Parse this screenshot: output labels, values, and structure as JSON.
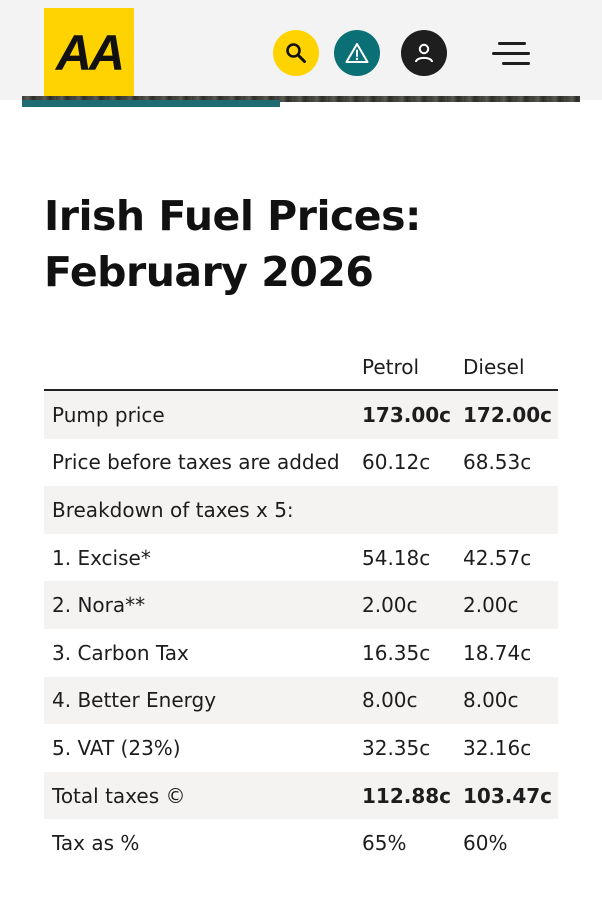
{
  "header": {
    "logo_text": "AA",
    "brand_color": "#ffd300",
    "icons": [
      "search-icon",
      "warning-icon",
      "account-icon",
      "menu-icon"
    ]
  },
  "article": {
    "title_line1": "Irish Fuel Prices:",
    "title_line2": "February 2026"
  },
  "table": {
    "columns": [
      "",
      "Petrol",
      "Diesel"
    ],
    "rows": [
      {
        "label": "Pump price",
        "petrol": "173.00c",
        "diesel": "172.00c",
        "shaded": true,
        "bold": true
      },
      {
        "label": "Price before taxes are added",
        "petrol": "60.12c",
        "diesel": "68.53c",
        "shaded": false,
        "bold": false
      },
      {
        "label": "Breakdown of taxes x 5:",
        "petrol": "",
        "diesel": "",
        "shaded": true,
        "bold": false
      },
      {
        "label": "1. Excise*",
        "petrol": "54.18c",
        "diesel": "42.57c",
        "shaded": false,
        "bold": false
      },
      {
        "label": "2. Nora**",
        "petrol": "2.00c",
        "diesel": "2.00c",
        "shaded": true,
        "bold": false
      },
      {
        "label": "3. Carbon Tax",
        "petrol": "16.35c",
        "diesel": "18.74c",
        "shaded": false,
        "bold": false
      },
      {
        "label": "4. Better Energy",
        "petrol": "8.00c",
        "diesel": "8.00c",
        "shaded": true,
        "bold": false
      },
      {
        "label": "5. VAT (23%)",
        "petrol": "32.35c",
        "diesel": "32.16c",
        "shaded": false,
        "bold": false
      },
      {
        "label": "Total taxes ©",
        "petrol": "112.88c",
        "diesel": "103.47c",
        "shaded": true,
        "bold": true
      },
      {
        "label": "Tax as %",
        "petrol": "65%",
        "diesel": "60%",
        "shaded": false,
        "bold": false
      }
    ]
  }
}
